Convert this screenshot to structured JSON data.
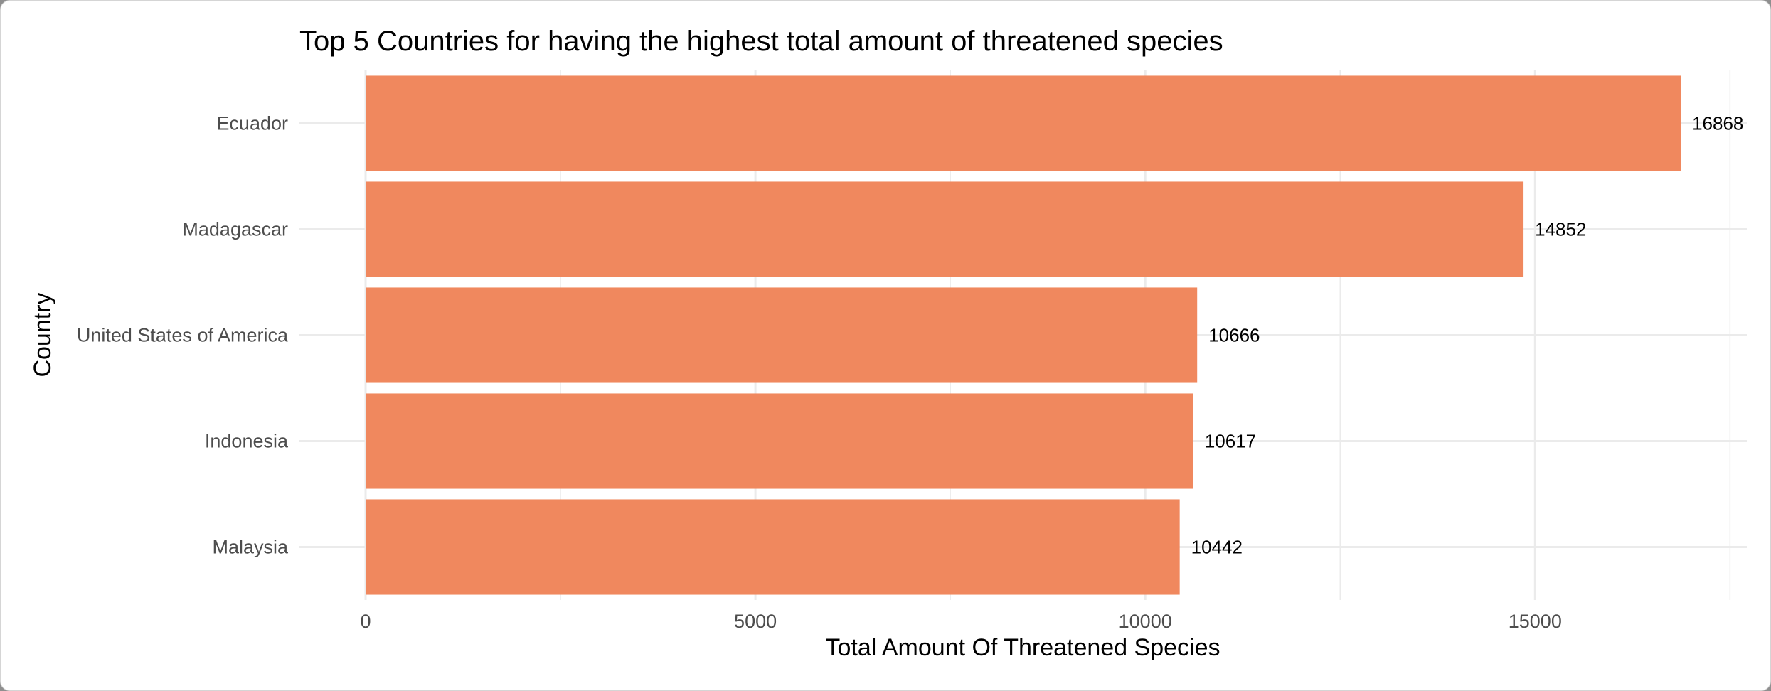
{
  "chart_data": {
    "type": "bar",
    "orientation": "horizontal",
    "title": "Top 5 Countries for having the highest total amount of threatened species",
    "xlabel": "Total Amount Of Threatened Species",
    "ylabel": "Country",
    "categories": [
      "Ecuador",
      "Madagascar",
      "United States of America",
      "Indonesia",
      "Malaysia"
    ],
    "values": [
      16868,
      14852,
      10666,
      10617,
      10442
    ],
    "xlim": [
      0,
      17700
    ],
    "x_ticks": [
      0,
      5000,
      10000,
      15000
    ],
    "x_tick_labels": [
      "0",
      "5000",
      "10000",
      "15000"
    ],
    "bar_color": "#f0885e",
    "grid": true,
    "grid_color": "#ebebeb",
    "legend": "none"
  }
}
